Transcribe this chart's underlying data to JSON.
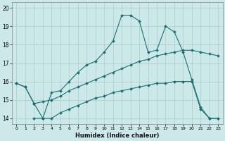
{
  "title": "",
  "xlabel": "Humidex (Indice chaleur)",
  "background_color": "#cce8e8",
  "grid_color": "#aacccc",
  "line_color": "#1a7070",
  "xlim": [
    -0.5,
    23.5
  ],
  "ylim": [
    13.7,
    20.3
  ],
  "xticks": [
    0,
    1,
    2,
    3,
    4,
    5,
    6,
    7,
    8,
    9,
    10,
    11,
    12,
    13,
    14,
    15,
    16,
    17,
    18,
    19,
    20,
    21,
    22,
    23
  ],
  "yticks": [
    14,
    15,
    16,
    17,
    18,
    19,
    20
  ],
  "line1_x": [
    0,
    1,
    2,
    3,
    4,
    5,
    6,
    7,
    8,
    9,
    10,
    11,
    12,
    13,
    14,
    15,
    16,
    17,
    18,
    19,
    20,
    21,
    22,
    23
  ],
  "line1_y": [
    15.9,
    15.7,
    14.8,
    14.0,
    15.4,
    15.5,
    16.0,
    16.5,
    16.9,
    17.1,
    17.6,
    18.2,
    19.6,
    19.6,
    19.3,
    17.6,
    17.7,
    19.0,
    18.7,
    17.6,
    16.1,
    14.6,
    14.0,
    14.0
  ],
  "line2_x": [
    0,
    1,
    2,
    3,
    4,
    5,
    6,
    7,
    8,
    9,
    10,
    11,
    12,
    13,
    14,
    15,
    16,
    17,
    18,
    19,
    20,
    21,
    22,
    23
  ],
  "line2_y": [
    15.9,
    15.7,
    14.8,
    14.9,
    15.0,
    15.2,
    15.5,
    15.7,
    15.9,
    16.1,
    16.3,
    16.5,
    16.7,
    16.9,
    17.1,
    17.2,
    17.4,
    17.5,
    17.6,
    17.7,
    17.7,
    17.6,
    17.5,
    17.4
  ],
  "line3_x": [
    2,
    3,
    4,
    5,
    6,
    7,
    8,
    9,
    10,
    11,
    12,
    13,
    14,
    15,
    16,
    17,
    18,
    19,
    20,
    21,
    22,
    23
  ],
  "line3_y": [
    14.0,
    14.0,
    14.0,
    14.3,
    14.5,
    14.7,
    14.9,
    15.1,
    15.2,
    15.4,
    15.5,
    15.6,
    15.7,
    15.8,
    15.9,
    15.9,
    16.0,
    16.0,
    16.0,
    14.5,
    14.0,
    14.0
  ]
}
